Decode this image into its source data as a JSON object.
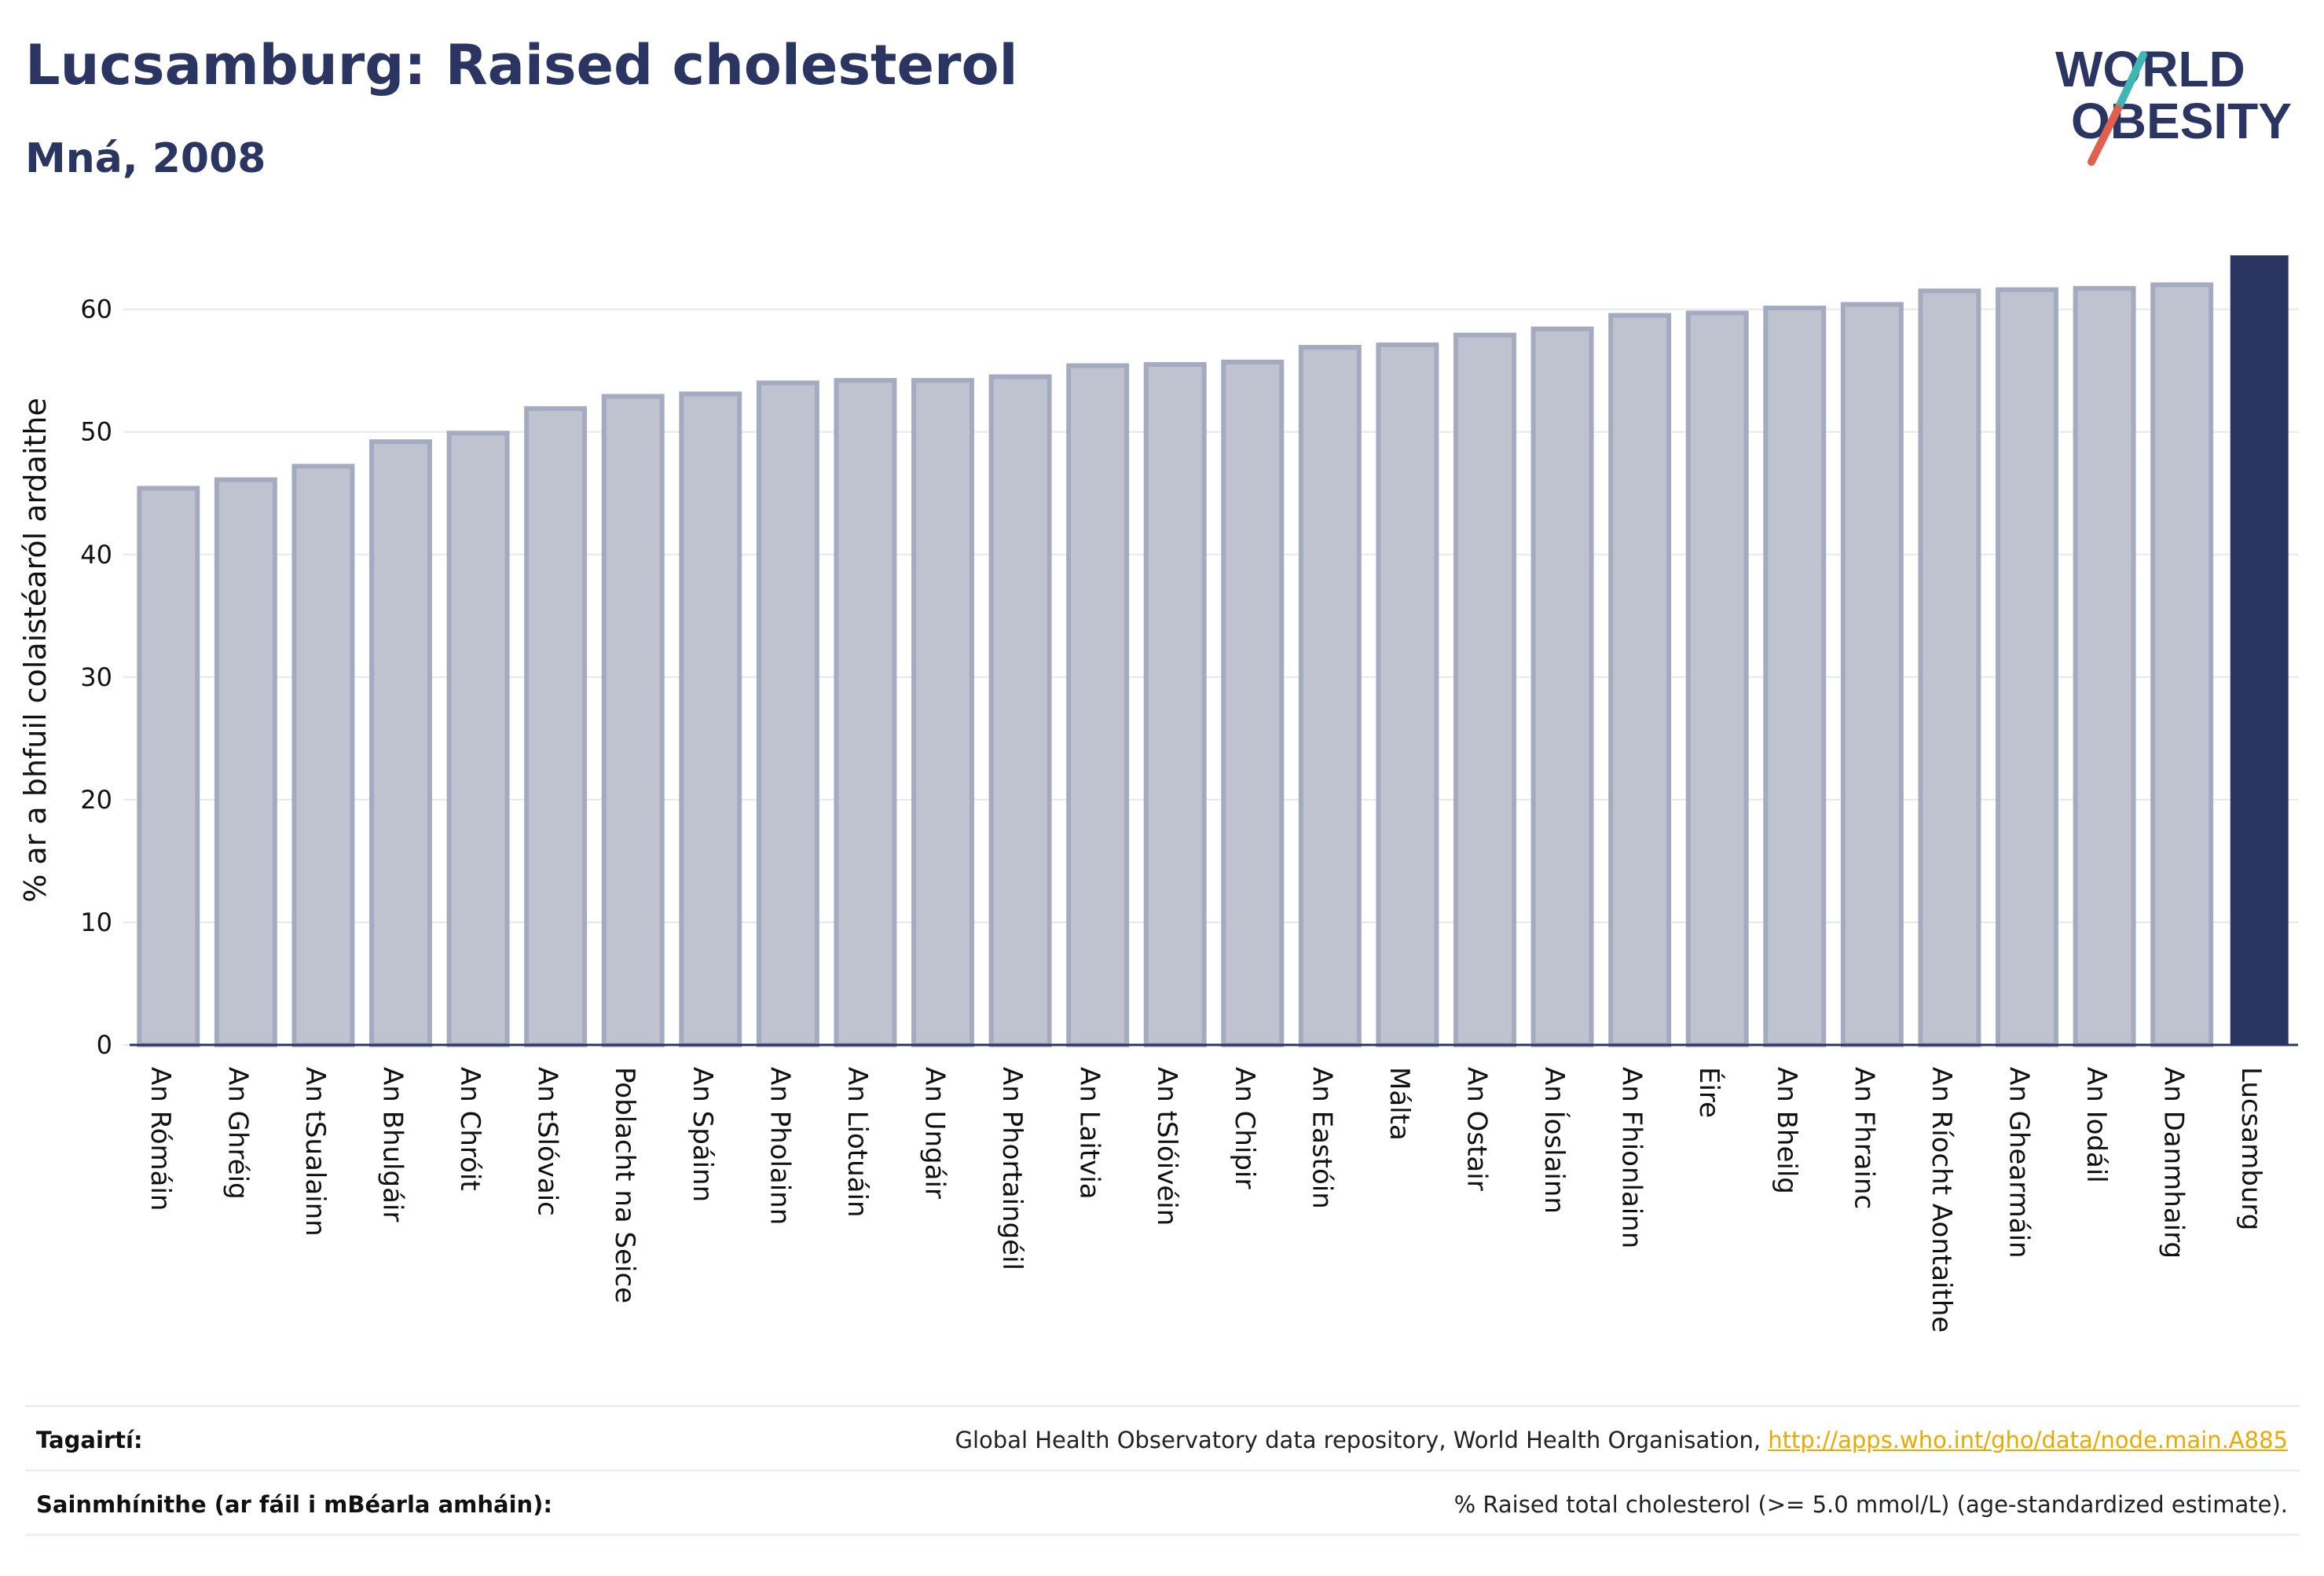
{
  "header": {
    "title": "Lucsamburg: Raised cholesterol",
    "subtitle": "Mná, 2008"
  },
  "logo": {
    "line1": "WORLD",
    "line2": "OBESITY",
    "text_color": "#2b3561",
    "slash_colors": [
      "#3fb6b4",
      "#e0604e"
    ]
  },
  "footer": {
    "references_label": "Tagairtí:",
    "references_text": "Global Health Observatory data repository, World Health Organisation, ",
    "references_link": "http://apps.who.int/gho/data/node.main.A885",
    "definitions_label": "Sainmhínithe (ar fáil i mBéarla amháin):",
    "definitions_text": "% Raised total cholesterol (>= 5.0 mmol/L) (age-standardized estimate)."
  },
  "chart_data": {
    "type": "bar",
    "ylabel": "% ar a bhfuil colaistéaról ardaithe",
    "xlabel": "",
    "ylim": [
      0,
      64.4
    ],
    "yticks": [
      0,
      10,
      20,
      30,
      40,
      50,
      60
    ],
    "grid": true,
    "highlight_category": "Lucsamburg",
    "colors": {
      "bar": "#bfc3d0",
      "bar_edge": "#a4aac0",
      "highlight": "#2b3561",
      "grid": "#e6e8ee"
    },
    "categories": [
      "An Rómáin",
      "An Ghréig",
      "An tSualainn",
      "An Bhulgáir",
      "An Chróit",
      "An tSlóvaic",
      "Poblacht na Seice",
      "An Spáinn",
      "An Pholainn",
      "An Liotuáin",
      "An Ungáir",
      "An Phortaingéil",
      "An Laitvia",
      "An tSlóivéin",
      "An Chipir",
      "An Eastóin",
      "Málta",
      "An Ostair",
      "An Íoslainn",
      "An Fhionlainn",
      "Éire",
      "An Bheilg",
      "An Fhrainc",
      "An Ríocht Aontaithe",
      "An Ghearmáin",
      "An Iodáil",
      "An Danmhairg",
      "Lucsamburg"
    ],
    "values": [
      45.4,
      46.1,
      47.2,
      49.2,
      49.9,
      51.9,
      52.9,
      53.1,
      54.0,
      54.2,
      54.2,
      54.5,
      55.4,
      55.5,
      55.7,
      56.9,
      57.1,
      57.9,
      58.4,
      59.5,
      59.7,
      60.1,
      60.4,
      61.5,
      61.6,
      61.7,
      62.0,
      64.4
    ]
  }
}
